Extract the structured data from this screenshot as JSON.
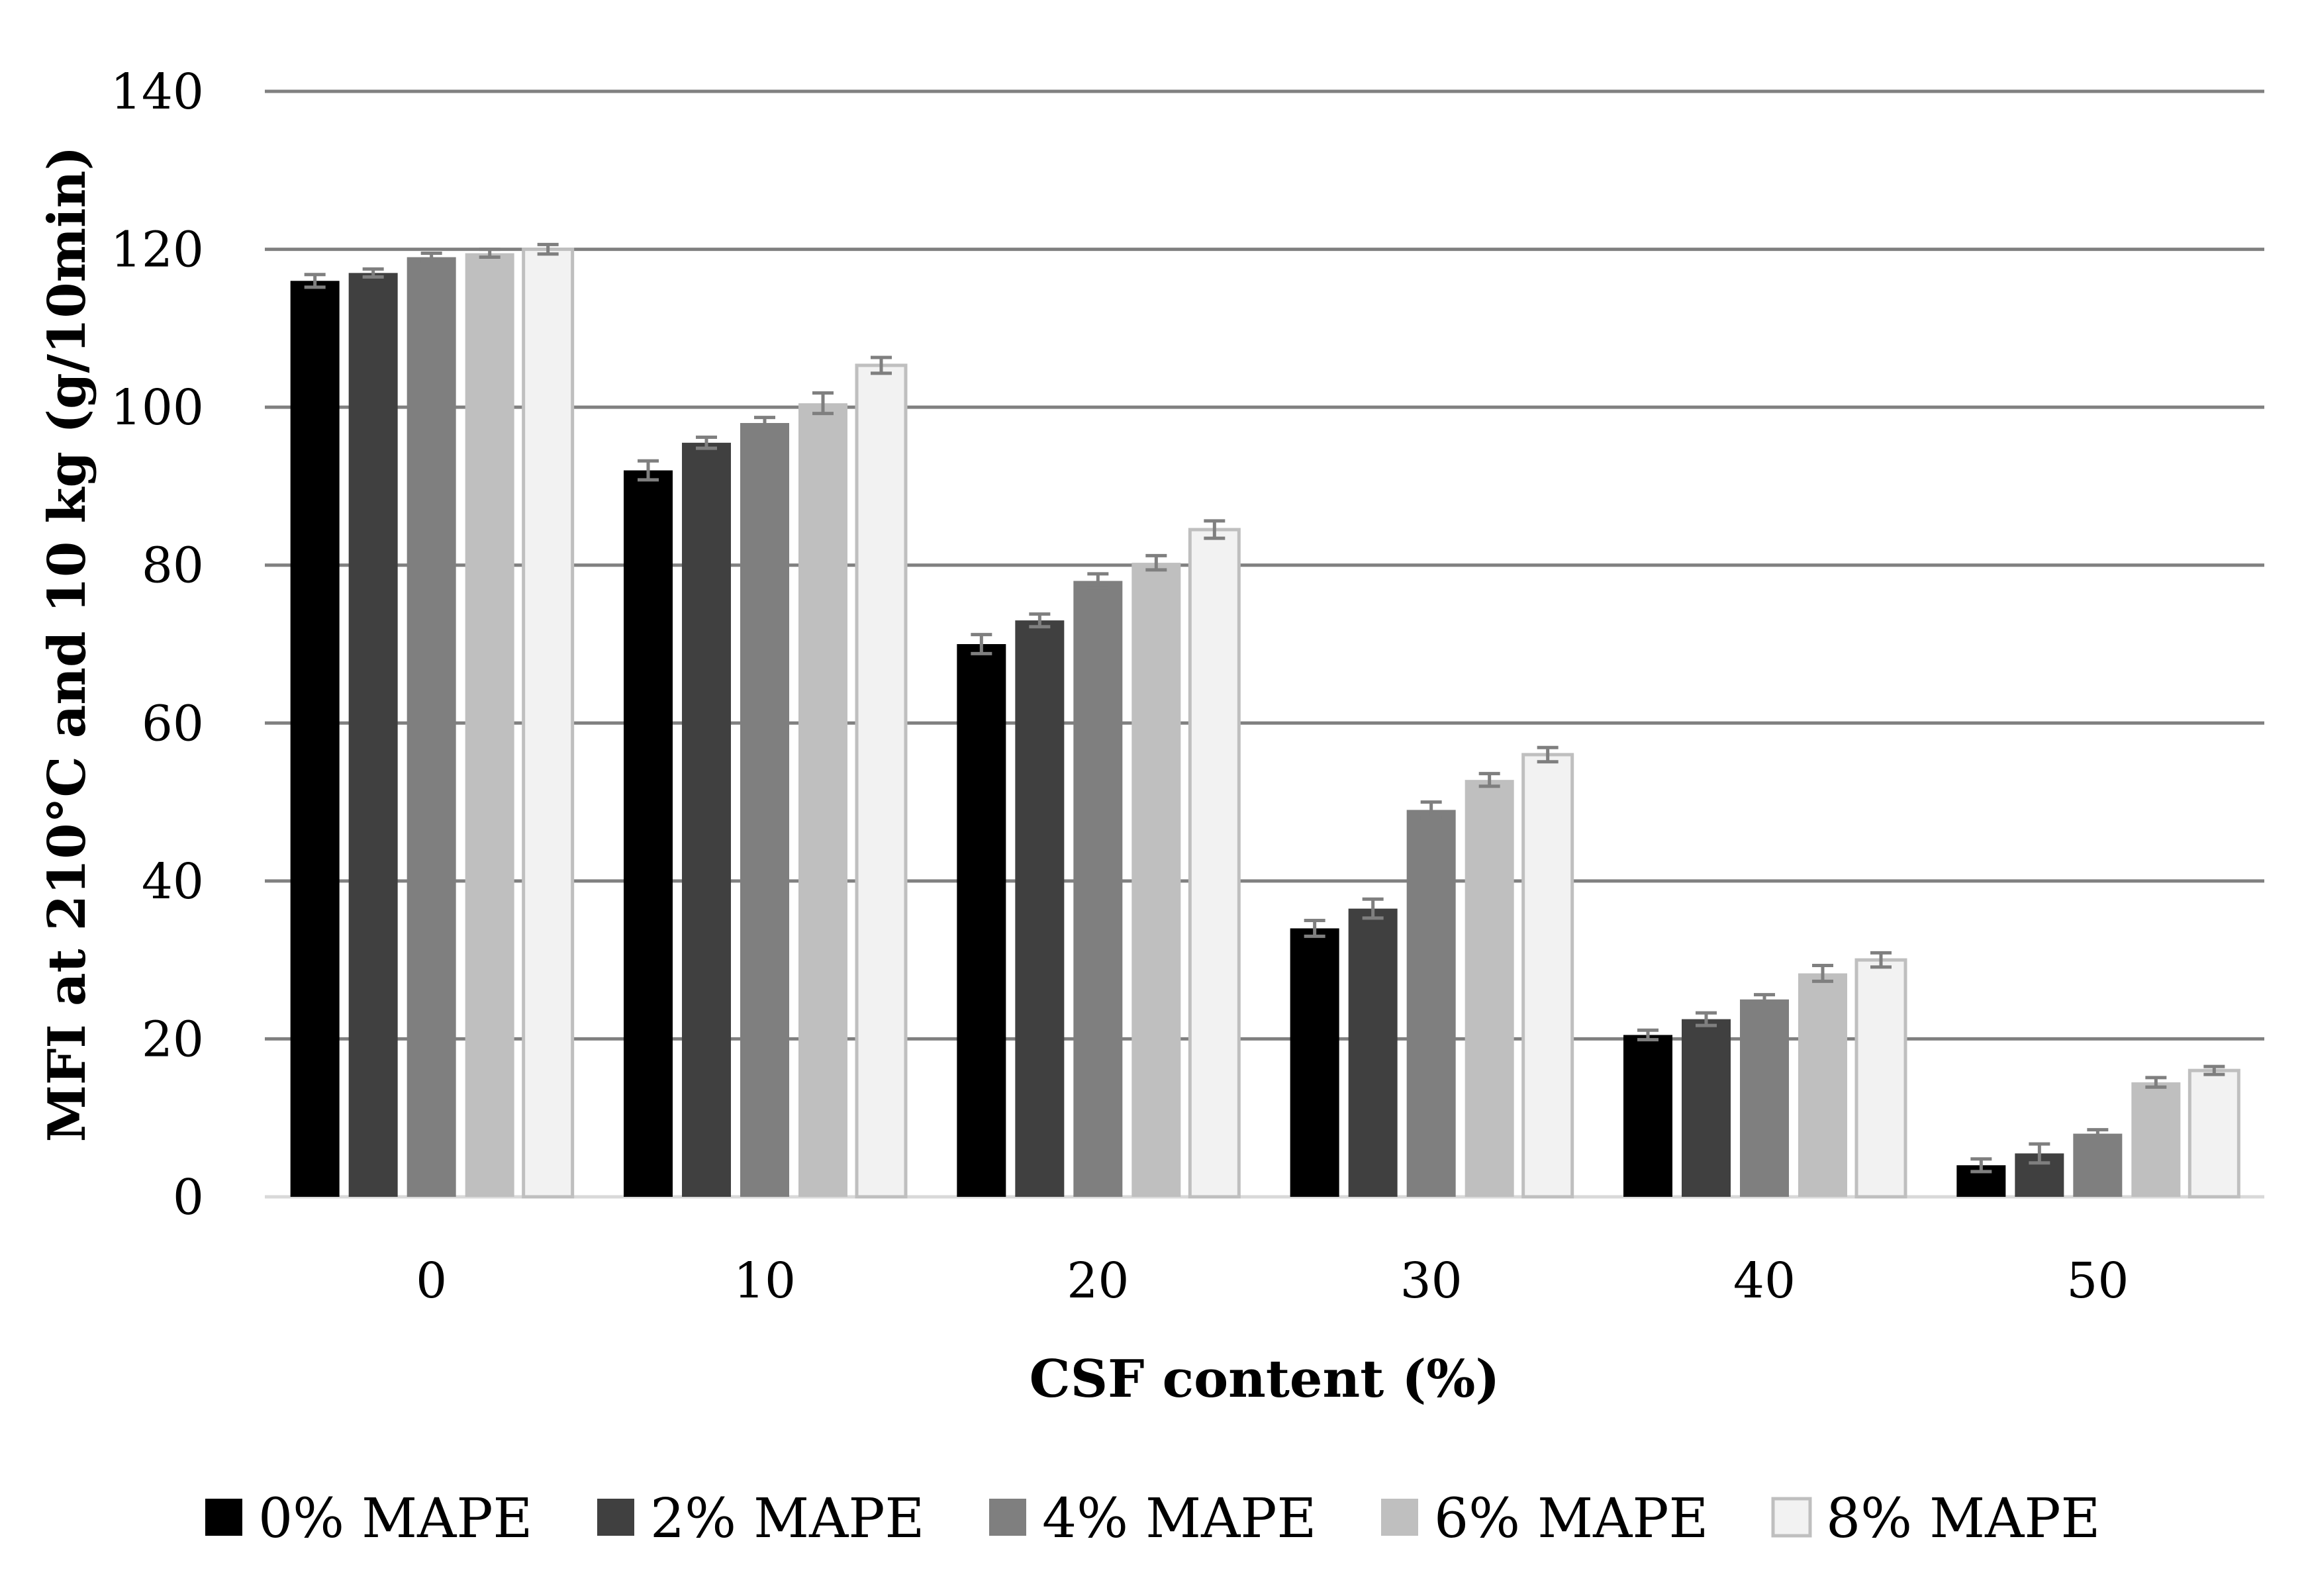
{
  "chart_data": {
    "type": "bar",
    "title": "",
    "xlabel": "CSF content (%)",
    "ylabel": "MFI at 210°C and 10 kg (g/10min)",
    "categories": [
      "0",
      "10",
      "20",
      "30",
      "40",
      "50"
    ],
    "ylim": [
      0,
      140
    ],
    "yticks": [
      "0",
      "20",
      "40",
      "60",
      "80",
      "100",
      "120",
      "140"
    ],
    "grid": true,
    "legend_position": "bottom",
    "series": [
      {
        "name": "0% MAPE",
        "color": "#000000",
        "values": [
          116,
          92,
          70,
          34,
          20.5,
          4
        ],
        "errors": [
          0.8,
          1.2,
          1.2,
          1.0,
          0.6,
          0.8
        ]
      },
      {
        "name": "2% MAPE",
        "color": "#404040",
        "values": [
          117,
          95.5,
          73,
          36.5,
          22.5,
          5.5
        ],
        "errors": [
          0.5,
          0.7,
          0.8,
          1.2,
          0.8,
          1.2
        ]
      },
      {
        "name": "4% MAPE",
        "color": "#7f7f7f",
        "values": [
          119,
          98,
          78,
          49,
          25,
          8
        ],
        "errors": [
          0.5,
          0.7,
          0.9,
          1.0,
          0.6,
          0.5
        ]
      },
      {
        "name": "6% MAPE",
        "color": "#bfbfbf",
        "values": [
          119.5,
          100.5,
          80.3,
          52.8,
          28.3,
          14.5
        ],
        "errors": [
          0.5,
          1.3,
          0.9,
          0.8,
          1.0,
          0.6
        ]
      },
      {
        "name": "8% MAPE",
        "color": "#f2f2f2",
        "values": [
          120,
          105.3,
          84.5,
          56,
          30,
          16
        ],
        "errors": [
          0.6,
          1.0,
          1.1,
          0.9,
          0.9,
          0.5
        ]
      }
    ]
  }
}
